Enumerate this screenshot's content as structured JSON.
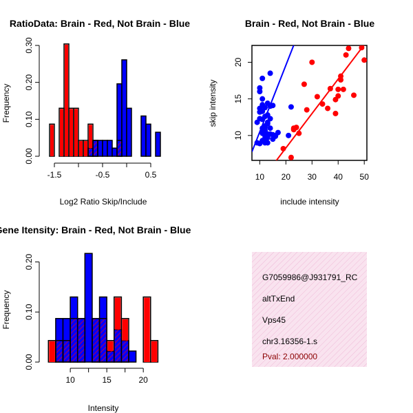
{
  "chart_data": [
    {
      "type": "bar",
      "title": "RatioData: Brain - Red, Not Brain - Blue",
      "xlabel": "Log2 Ratio Skip/Include",
      "ylabel": "Frequency",
      "xlim": [
        -1.7,
        0.8
      ],
      "ylim": [
        0,
        0.3
      ],
      "xticks": [
        "-1.5",
        "-0.5",
        "0.5"
      ],
      "xtick_values": [
        -1.5,
        -0.5,
        0.5
      ],
      "yticks": [
        "0.00",
        "0.10",
        "0.20",
        "0.30"
      ],
      "ytick_values": [
        0.0,
        0.1,
        0.2,
        0.3
      ],
      "bin_width": 0.1,
      "series": [
        {
          "name": "Brain",
          "color": "#ff0000",
          "bins_start": [
            -1.6,
            -1.5,
            -1.4,
            -1.3,
            -1.2,
            -1.1,
            -1.0,
            -0.9,
            -0.8,
            -0.7,
            -0.6,
            -0.5,
            -0.4,
            -0.3,
            -0.2,
            -0.1
          ],
          "values": [
            0.087,
            0.0,
            0.13,
            0.304,
            0.13,
            0.13,
            0.043,
            0.043,
            0.087,
            0.043,
            0.0,
            0.0,
            0.0,
            0.0,
            0.043,
            0.0
          ]
        },
        {
          "name": "Not Brain",
          "color": "#0000ff",
          "bins_start": [
            -0.8,
            -0.7,
            -0.6,
            -0.5,
            -0.4,
            -0.3,
            -0.2,
            -0.1,
            0.0,
            0.1,
            0.2,
            0.3,
            0.4,
            0.5,
            0.6
          ],
          "values": [
            0.022,
            0.043,
            0.043,
            0.043,
            0.043,
            0.022,
            0.196,
            0.261,
            0.13,
            0.0,
            0.0,
            0.109,
            0.087,
            0.0,
            0.065
          ]
        }
      ]
    },
    {
      "type": "scatter",
      "title": "Brain - Red, Not Brain - Blue",
      "xlabel": "include intensity",
      "ylabel": "skip intensity",
      "xlim": [
        7,
        51
      ],
      "ylim": [
        6.6,
        22.3
      ],
      "xticks": [
        "10",
        "20",
        "30",
        "40",
        "50"
      ],
      "xtick_values": [
        10,
        20,
        30,
        40,
        50
      ],
      "yticks": [
        "10",
        "15",
        "20"
      ],
      "ytick_values": [
        10,
        15,
        20
      ],
      "series": [
        {
          "name": "Brain",
          "color": "#ff0000",
          "x": [
            19,
            22,
            23,
            24,
            25,
            28,
            30,
            32,
            34,
            36,
            37,
            39,
            39,
            40,
            40,
            41,
            41,
            42,
            43,
            44,
            46,
            49,
            50,
            23,
            27
          ],
          "y": [
            8.2,
            7.0,
            11.0,
            11.1,
            10.3,
            13.5,
            20.0,
            15.3,
            14.3,
            13.7,
            16.4,
            14.9,
            13.0,
            15.4,
            16.3,
            17.6,
            18.1,
            16.3,
            21.0,
            21.9,
            15.5,
            22.0,
            20.3,
            10.8,
            17.0
          ],
          "fit": {
            "slope": 0.47,
            "intercept": -1.1
          }
        },
        {
          "name": "Not Brain",
          "color": "#0000ff",
          "x": [
            9,
            10,
            10,
            10,
            10,
            11,
            11,
            11,
            11,
            11,
            11,
            11,
            11,
            12,
            12,
            12,
            12,
            12,
            12,
            12,
            12,
            13,
            13,
            13,
            13,
            13,
            13,
            14,
            14,
            14,
            14,
            15,
            15,
            16,
            17,
            21,
            22,
            10,
            11,
            12,
            13,
            14,
            15,
            16,
            9,
            10
          ],
          "y": [
            9.0,
            12.3,
            16.0,
            16.5,
            13.7,
            13.3,
            17.8,
            14.2,
            11.0,
            12.2,
            10.6,
            10.3,
            9.3,
            9.0,
            10.6,
            11.1,
            11.3,
            13.8,
            9.6,
            10.7,
            10.0,
            11.6,
            12.8,
            10.2,
            9.0,
            9.7,
            14.4,
            14.0,
            10.2,
            18.5,
            12.3,
            9.5,
            14.1,
            10.0,
            10.4,
            10.0,
            13.9,
            13.2,
            15.0,
            12.6,
            11.8,
            11.0,
            10.1,
            9.9,
            11.8,
            8.9
          ],
          "fit": {
            "slope": 0.91,
            "intercept": 1.4
          }
        }
      ]
    },
    {
      "type": "bar",
      "title": "Gene Itensity: Brain - Red, Not Brain - Blue",
      "xlabel": "Intensity",
      "ylabel": "Frequency",
      "xlim": [
        6.5,
        23
      ],
      "ylim": [
        0,
        0.22
      ],
      "xticks": [
        "10",
        "15",
        "20"
      ],
      "xtick_values": [
        10,
        15,
        20
      ],
      "yticks": [
        "0.00",
        "0.10",
        "0.20"
      ],
      "ytick_values": [
        0.0,
        0.1,
        0.2
      ],
      "bin_width": 1,
      "series": [
        {
          "name": "Brain",
          "color": "#ff0000",
          "bins_start": [
            7,
            8,
            9,
            10,
            11,
            12,
            13,
            14,
            15,
            16,
            17,
            18,
            19,
            20,
            21
          ],
          "values": [
            0.043,
            0.043,
            0.043,
            0.087,
            0.087,
            0.0,
            0.087,
            0.087,
            0.043,
            0.13,
            0.087,
            0.0,
            0.0,
            0.13,
            0.043
          ]
        },
        {
          "name": "Not Brain",
          "color": "#0000ff",
          "bins_start": [
            8,
            9,
            10,
            11,
            12,
            13,
            14,
            15,
            16,
            17,
            18
          ],
          "values": [
            0.087,
            0.087,
            0.13,
            0.087,
            0.217,
            0.087,
            0.13,
            0.022,
            0.065,
            0.043,
            0.022
          ]
        }
      ]
    }
  ],
  "info_box": {
    "lines": [
      "G7059986@J931791_RC",
      "altTxEnd",
      "Vps45",
      "chr3.16356-1.s"
    ],
    "pval": "Pval: 2.000000",
    "pval_color": "#8b0000",
    "fill_color": "#f5d7e8"
  }
}
